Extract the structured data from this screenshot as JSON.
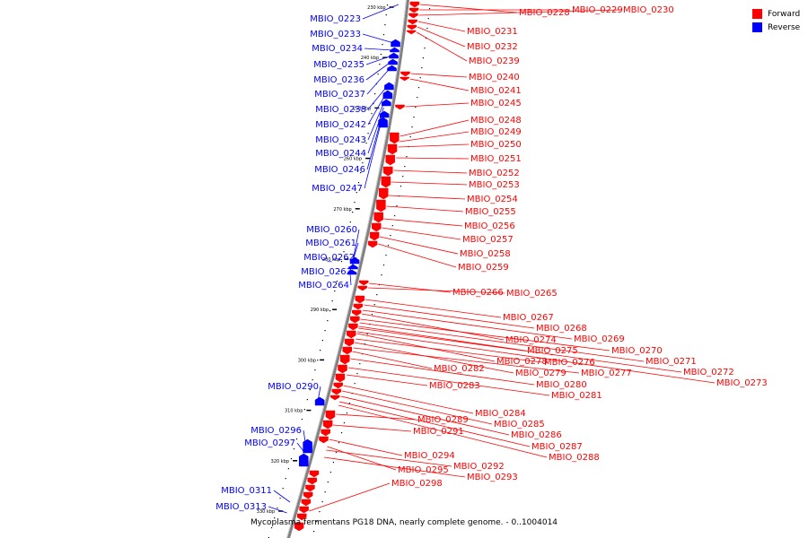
{
  "caption": "Mycoplasma fermentans PG18 DNA, nearly complete genome. - 0..1004014",
  "legend": [
    {
      "label": "Forward",
      "color": "#ff0000"
    },
    {
      "label": "Reverse",
      "color": "#0000ff"
    }
  ],
  "colors": {
    "forward": "#ff0000",
    "reverse": "#0000ff",
    "backbone": "#808080"
  },
  "ticks": [
    {
      "label": "230 kbp",
      "kbp": 230
    },
    {
      "label": "240 kbp",
      "kbp": 240
    },
    {
      "label": "250 kbp",
      "kbp": 250
    },
    {
      "label": "260 kbp",
      "kbp": 260
    },
    {
      "label": "270 kbp",
      "kbp": 270
    },
    {
      "label": "280 kbp",
      "kbp": 280
    },
    {
      "label": "290 kbp",
      "kbp": 290
    },
    {
      "label": "300 kbp",
      "kbp": 300
    },
    {
      "label": "310 kbp",
      "kbp": 310
    },
    {
      "label": "320 kbp",
      "kbp": 320
    },
    {
      "label": "330 kbp",
      "kbp": 330
    }
  ],
  "reverse_genes": [
    "MBIO_0223",
    "MBIO_0233",
    "MBIO_0234",
    "MBIO_0235",
    "MBIO_0236",
    "MBIO_0237",
    "MBIO_0238",
    "MBIO_0242",
    "MBIO_0243",
    "MBIO_0244",
    "MBIO_0246",
    "MBIO_0247",
    "MBIO_0260",
    "MBIO_0261",
    "MBIO_0262",
    "MBIO_0263",
    "MBIO_0264",
    "MBIO_0290",
    "MBIO_0296",
    "MBIO_0297",
    "MBIO_0311",
    "MBIO_0313"
  ],
  "forward_genes": [
    "MBIO_0228",
    "MBIO_0229",
    "MBIO_0230",
    "MBIO_0231",
    "MBIO_0232",
    "MBIO_0239",
    "MBIO_0240",
    "MBIO_0241",
    "MBIO_0245",
    "MBIO_0248",
    "MBIO_0249",
    "MBIO_0250",
    "MBIO_0251",
    "MBIO_0252",
    "MBIO_0253",
    "MBIO_0254",
    "MBIO_0255",
    "MBIO_0256",
    "MBIO_0257",
    "MBIO_0258",
    "MBIO_0259",
    "MBIO_0266",
    "MBIO_0265",
    "MBIO_0267",
    "MBIO_0268",
    "MBIO_0269",
    "MBIO_0274",
    "MBIO_0270",
    "MBIO_0275",
    "MBIO_0271",
    "MBIO_0278",
    "MBIO_0276",
    "MBIO_0272",
    "MBIO_0282",
    "MBIO_0279",
    "MBIO_0277",
    "MBIO_0273",
    "MBIO_0280",
    "MBIO_0283",
    "MBIO_0281",
    "MBIO_0284",
    "MBIO_0289",
    "MBIO_0285",
    "MBIO_0291",
    "MBIO_0286",
    "MBIO_0287",
    "MBIO_0288",
    "MBIO_0294",
    "MBIO_0292",
    "MBIO_0295",
    "MBIO_0293",
    "MBIO_0298"
  ]
}
